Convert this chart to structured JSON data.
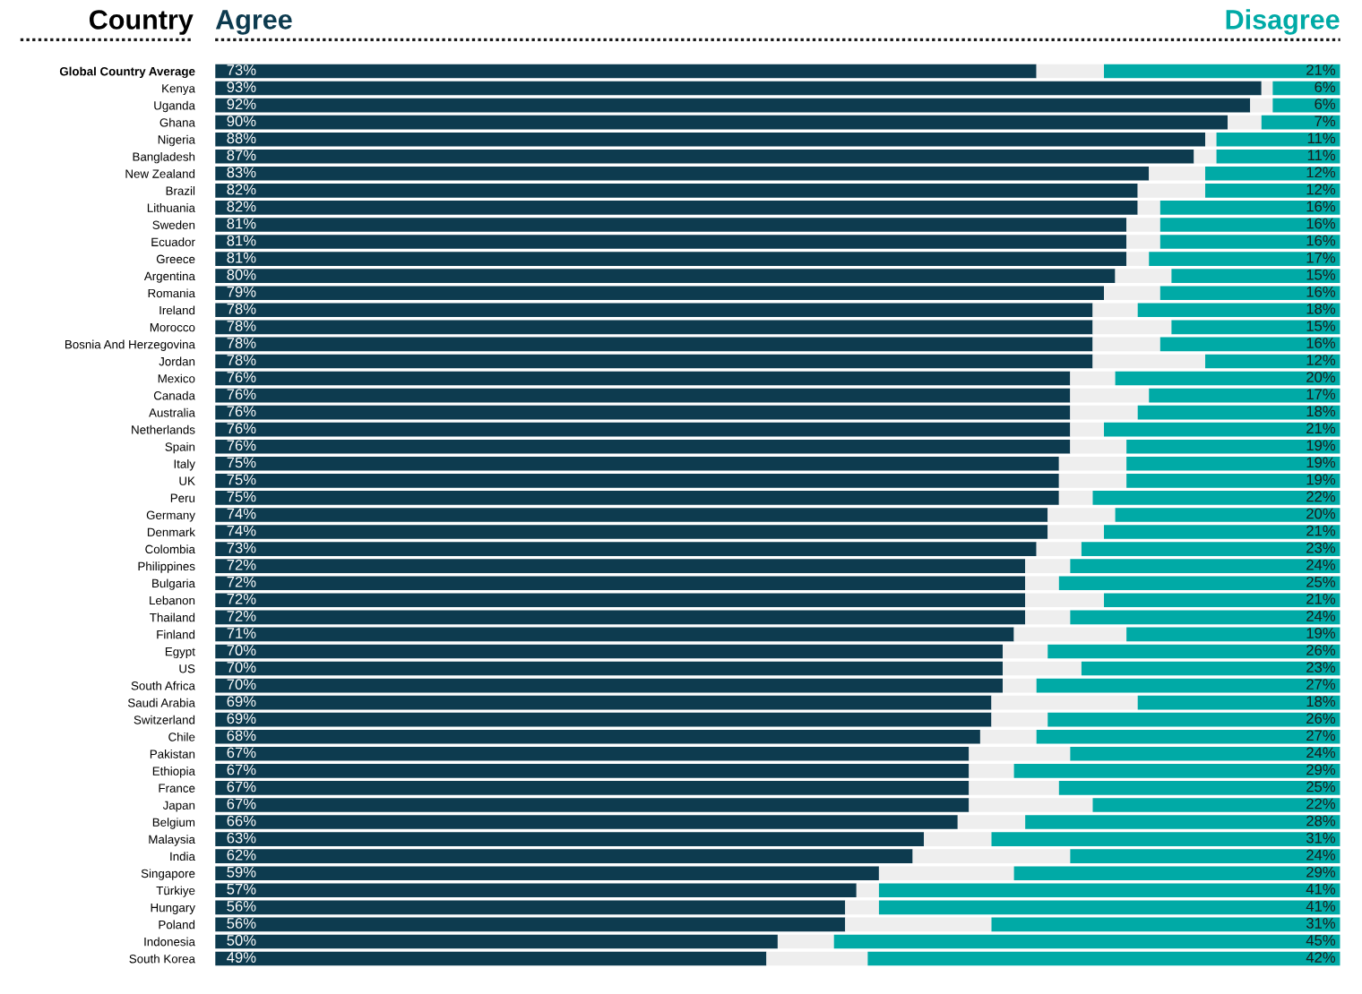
{
  "chart_data": {
    "type": "bar",
    "orientation": "horizontal",
    "stacked": true,
    "ylabel": "Country",
    "tick_labels": "y",
    "grid": false,
    "xlim": [
      0,
      100
    ],
    "categories": [
      "Global Country Average",
      "Kenya",
      "Uganda",
      "Ghana",
      "Nigeria",
      "Bangladesh",
      "New Zealand",
      "Brazil",
      "Lithuania",
      "Sweden",
      "Ecuador",
      "Greece",
      "Argentina",
      "Romania",
      "Ireland",
      "Morocco",
      "Bosnia And Herzegovina",
      "Jordan",
      "Mexico",
      "Canada",
      "Australia",
      "Netherlands",
      "Spain",
      "Italy",
      "UK",
      "Peru",
      "Germany",
      "Denmark",
      "Colombia",
      "Philippines",
      "Bulgaria",
      "Lebanon",
      "Thailand",
      "Finland",
      "Egypt",
      "US",
      "South Africa",
      "Saudi Arabia",
      "Switzerland",
      "Chile",
      "Pakistan",
      "Ethiopia",
      "France",
      "Japan",
      "Belgium",
      "Malaysia",
      "India",
      "Singapore",
      "Türkiye",
      "Hungary",
      "Poland",
      "Indonesia",
      "South Korea"
    ],
    "series": [
      {
        "name": "Agree",
        "color": "#0d3b4f",
        "values": [
          73,
          93,
          92,
          90,
          88,
          87,
          83,
          82,
          82,
          81,
          81,
          81,
          80,
          79,
          78,
          78,
          78,
          78,
          76,
          76,
          76,
          76,
          76,
          75,
          75,
          75,
          74,
          74,
          73,
          72,
          72,
          72,
          72,
          71,
          70,
          70,
          70,
          69,
          69,
          68,
          67,
          67,
          67,
          67,
          66,
          63,
          62,
          59,
          57,
          56,
          56,
          50,
          49
        ],
        "value_labels": [
          "73%",
          "93%",
          "92%",
          "90%",
          "88%",
          "87%",
          "83%",
          "82%",
          "82%",
          "81%",
          "81%",
          "81%",
          "80%",
          "79%",
          "78%",
          "78%",
          "78%",
          "78%",
          "76%",
          "76%",
          "76%",
          "76%",
          "76%",
          "75%",
          "75%",
          "75%",
          "74%",
          "74%",
          "73%",
          "72%",
          "72%",
          "72%",
          "72%",
          "71%",
          "70%",
          "70%",
          "70%",
          "69%",
          "69%",
          "68%",
          "67%",
          "67%",
          "67%",
          "67%",
          "66%",
          "63%",
          "62%",
          "59%",
          "57%",
          "56%",
          "56%",
          "50%",
          "49%"
        ]
      },
      {
        "color": "#eeeeee",
        "values": [
          6,
          1,
          2,
          3,
          1,
          2,
          5,
          6,
          2,
          3,
          3,
          2,
          5,
          5,
          4,
          7,
          6,
          10,
          4,
          7,
          6,
          3,
          5,
          6,
          6,
          3,
          6,
          5,
          4,
          4,
          3,
          7,
          4,
          10,
          4,
          7,
          3,
          13,
          5,
          5,
          9,
          4,
          8,
          11,
          6,
          6,
          14,
          12,
          2,
          3,
          13,
          5,
          9
        ]
      },
      {
        "name": "Disagree",
        "color": "#00aaa6",
        "values": [
          21,
          6,
          6,
          7,
          11,
          11,
          12,
          12,
          16,
          16,
          16,
          17,
          15,
          16,
          18,
          15,
          16,
          12,
          20,
          17,
          18,
          21,
          19,
          19,
          19,
          22,
          20,
          21,
          23,
          24,
          25,
          21,
          24,
          19,
          26,
          23,
          27,
          18,
          26,
          27,
          24,
          29,
          25,
          22,
          28,
          31,
          24,
          29,
          41,
          41,
          31,
          45,
          42
        ],
        "value_labels": [
          "21%",
          "6%",
          "6%",
          "7%",
          "11%",
          "11%",
          "12%",
          "12%",
          "16%",
          "16%",
          "16%",
          "17%",
          "15%",
          "16%",
          "18%",
          "15%",
          "16%",
          "12%",
          "20%",
          "17%",
          "18%",
          "21%",
          "19%",
          "19%",
          "19%",
          "22%",
          "20%",
          "21%",
          "23%",
          "24%",
          "25%",
          "21%",
          "24%",
          "19%",
          "26%",
          "23%",
          "27%",
          "18%",
          "26%",
          "27%",
          "24%",
          "29%",
          "25%",
          "22%",
          "28%",
          "31%",
          "24%",
          "29%",
          "41%",
          "41%",
          "31%",
          "45%",
          "42%"
        ]
      }
    ]
  }
}
